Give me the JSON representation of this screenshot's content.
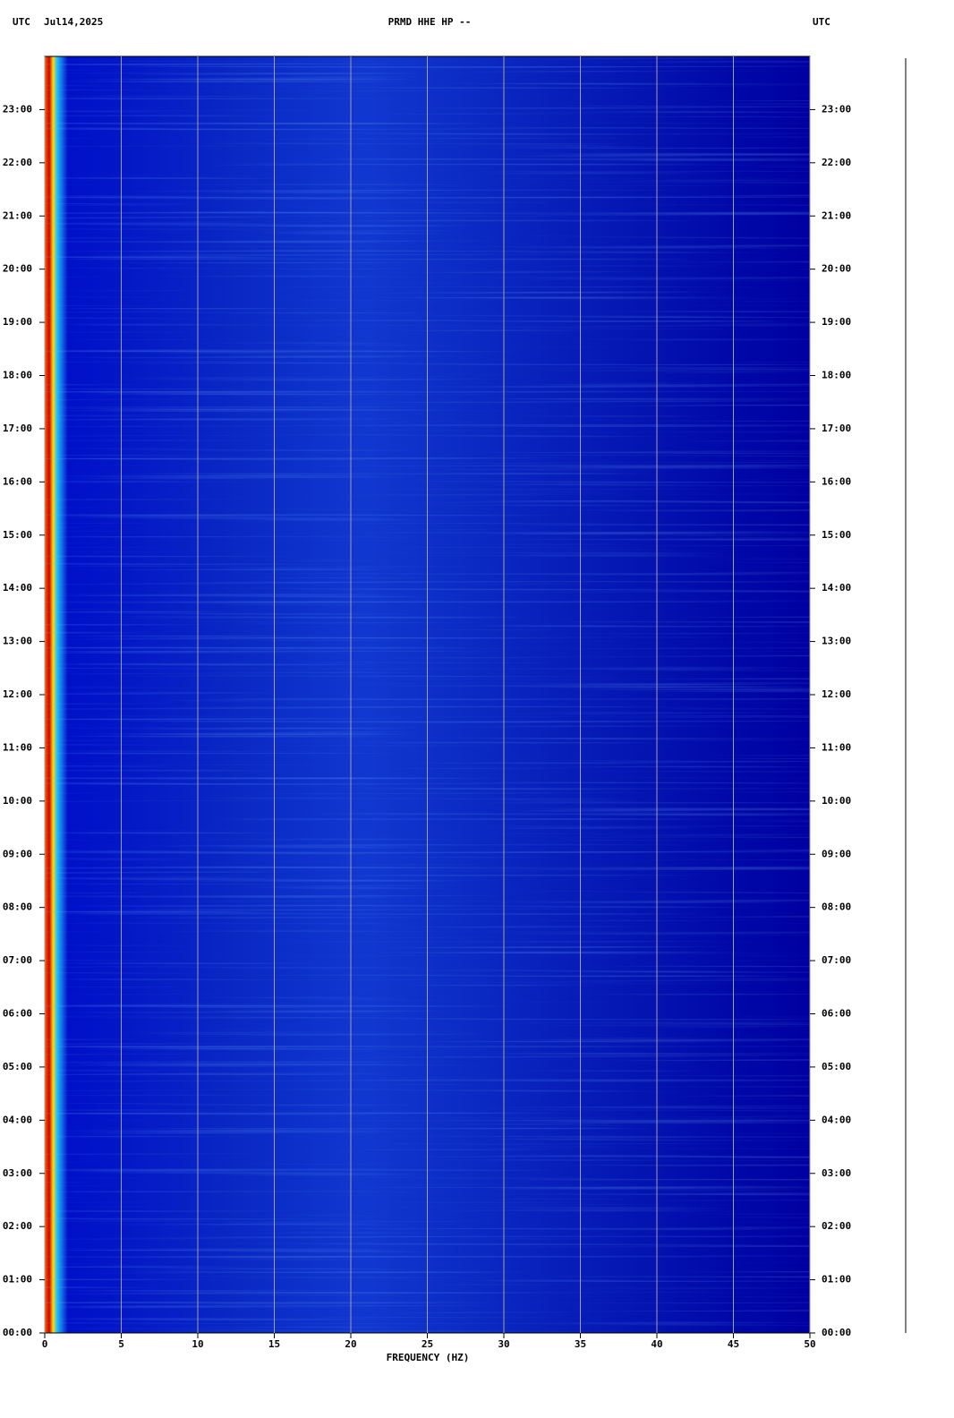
{
  "chart_data": {
    "type": "spectrogram",
    "header_left_zone": "UTC",
    "date": "Jul14,2025",
    "title": "PRMD HHE HP --",
    "header_right_zone": "UTC",
    "x_label": "FREQUENCY (HZ)",
    "xlim": [
      0,
      50
    ],
    "xticks": [
      0,
      5,
      10,
      15,
      20,
      25,
      30,
      35,
      40,
      45,
      50
    ],
    "ylim": [
      0,
      24
    ],
    "yticks": [
      {
        "value": 0,
        "label": "00:00"
      },
      {
        "value": 1,
        "label": "01:00"
      },
      {
        "value": 2,
        "label": "02:00"
      },
      {
        "value": 3,
        "label": "03:00"
      },
      {
        "value": 4,
        "label": "04:00"
      },
      {
        "value": 5,
        "label": "05:00"
      },
      {
        "value": 6,
        "label": "06:00"
      },
      {
        "value": 7,
        "label": "07:00"
      },
      {
        "value": 8,
        "label": "08:00"
      },
      {
        "value": 9,
        "label": "09:00"
      },
      {
        "value": 10,
        "label": "10:00"
      },
      {
        "value": 11,
        "label": "11:00"
      },
      {
        "value": 12,
        "label": "12:00"
      },
      {
        "value": 13,
        "label": "13:00"
      },
      {
        "value": 14,
        "label": "14:00"
      },
      {
        "value": 15,
        "label": "15:00"
      },
      {
        "value": 16,
        "label": "16:00"
      },
      {
        "value": 17,
        "label": "17:00"
      },
      {
        "value": 18,
        "label": "18:00"
      },
      {
        "value": 19,
        "label": "19:00"
      },
      {
        "value": 20,
        "label": "20:00"
      },
      {
        "value": 21,
        "label": "21:00"
      },
      {
        "value": 22,
        "label": "22:00"
      },
      {
        "value": 23,
        "label": "23:00"
      }
    ],
    "grid": true,
    "grid_color": "#a0a0a0"
  }
}
